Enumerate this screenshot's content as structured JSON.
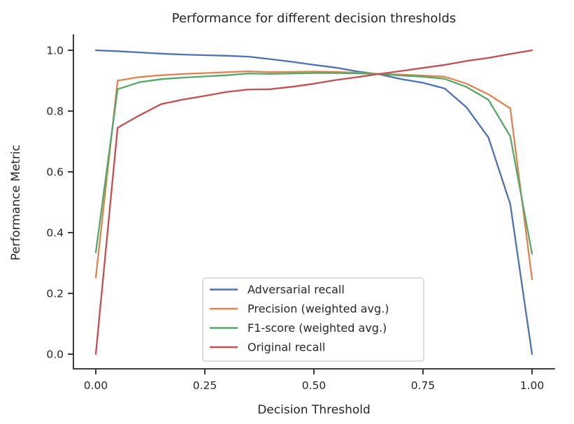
{
  "figure": {
    "title": "Performance for different decision thresholds",
    "xlabel": "Decision Threshold",
    "ylabel": "Performance Metric"
  },
  "chart_data": {
    "type": "line",
    "title": "Performance for different decision thresholds",
    "xlabel": "Decision Threshold",
    "ylabel": "Performance Metric",
    "xlim": [
      -0.05,
      1.05
    ],
    "ylim": [
      -0.05,
      1.05
    ],
    "grid": false,
    "legend_position": "lower center-left, inside axes",
    "x_tick_labels": [
      "0.00",
      "0.25",
      "0.50",
      "0.75",
      "1.00"
    ],
    "x_tick_values": [
      0,
      0.25,
      0.5,
      0.75,
      1.0
    ],
    "y_tick_labels": [
      "0.0",
      "0.2",
      "0.4",
      "0.6",
      "0.8",
      "1.0"
    ],
    "y_tick_values": [
      0,
      0.2,
      0.4,
      0.6,
      0.8,
      1.0
    ],
    "x": [
      0,
      0.05,
      0.1,
      0.15,
      0.2,
      0.25,
      0.3,
      0.35,
      0.4,
      0.45,
      0.5,
      0.55,
      0.6,
      0.65,
      0.7,
      0.75,
      0.8,
      0.85,
      0.9,
      0.95,
      1.0
    ],
    "series": [
      {
        "name": "Adversarial recall",
        "color": "#4C72B0",
        "values": [
          1.0,
          0.997,
          0.993,
          0.989,
          0.986,
          0.984,
          0.982,
          0.979,
          0.971,
          0.962,
          0.952,
          0.943,
          0.93,
          0.921,
          0.905,
          0.893,
          0.874,
          0.812,
          0.713,
          0.494,
          0.0
        ]
      },
      {
        "name": "Precision (weighted avg.)",
        "color": "#DD8452",
        "values": [
          0.252,
          0.9,
          0.912,
          0.918,
          0.922,
          0.925,
          0.928,
          0.931,
          0.928,
          0.929,
          0.93,
          0.929,
          0.926,
          0.922,
          0.92,
          0.917,
          0.913,
          0.89,
          0.855,
          0.809,
          0.246
        ]
      },
      {
        "name": "F1-score (weighted avg.)",
        "color": "#55A868",
        "values": [
          0.335,
          0.872,
          0.895,
          0.905,
          0.91,
          0.914,
          0.918,
          0.924,
          0.922,
          0.924,
          0.925,
          0.925,
          0.924,
          0.922,
          0.917,
          0.913,
          0.906,
          0.879,
          0.837,
          0.717,
          0.33
        ]
      },
      {
        "name": "Original recall",
        "color": "#C44E52",
        "values": [
          0.0,
          0.745,
          0.786,
          0.823,
          0.838,
          0.85,
          0.863,
          0.871,
          0.872,
          0.88,
          0.89,
          0.902,
          0.912,
          0.922,
          0.932,
          0.942,
          0.952,
          0.965,
          0.975,
          0.988,
          1.0
        ]
      }
    ],
    "style": {
      "text_color": "#262626",
      "spine_color": "#262626",
      "legend_border_color": "#cccccc",
      "background": "#ffffff"
    }
  }
}
